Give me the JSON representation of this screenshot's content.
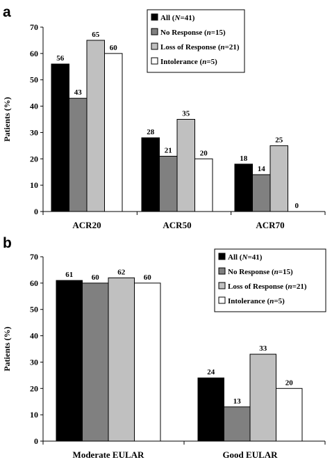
{
  "chart_data": [
    {
      "panel": "a",
      "type": "bar",
      "ylabel": "Patients (%)",
      "ylim": [
        0,
        70
      ],
      "yticks": [
        0,
        10,
        20,
        30,
        40,
        50,
        60,
        70
      ],
      "categories": [
        "ACR20",
        "ACR50",
        "ACR70"
      ],
      "series": [
        {
          "name": "All",
          "stat": "N=41",
          "color": "#000000",
          "values": [
            56,
            28,
            18
          ]
        },
        {
          "name": "No Response",
          "stat": "n=15",
          "color": "#808080",
          "values": [
            43,
            21,
            14
          ]
        },
        {
          "name": "Loss of Response",
          "stat": "n=21",
          "color": "#c0c0c0",
          "values": [
            65,
            35,
            25
          ]
        },
        {
          "name": "Intolerance",
          "stat": "n=5",
          "color": "#ffffff",
          "values": [
            60,
            20,
            0
          ]
        }
      ],
      "legend": "top-right",
      "grid": false
    },
    {
      "panel": "b",
      "type": "bar",
      "ylabel": "Patients (%)",
      "ylim": [
        0,
        70
      ],
      "yticks": [
        0,
        10,
        20,
        30,
        40,
        50,
        60,
        70
      ],
      "categories": [
        "Moderate EULAR",
        "Good EULAR"
      ],
      "series": [
        {
          "name": "All",
          "stat": "N=41",
          "color": "#000000",
          "values": [
            61,
            24
          ]
        },
        {
          "name": "No Response",
          "stat": "n=15",
          "color": "#808080",
          "values": [
            60,
            13
          ]
        },
        {
          "name": "Loss of Response",
          "stat": "n=21",
          "color": "#c0c0c0",
          "values": [
            62,
            33
          ]
        },
        {
          "name": "Intolerance",
          "stat": "n=5",
          "color": "#ffffff",
          "values": [
            60,
            20
          ]
        }
      ],
      "legend": "top-right",
      "grid": false
    }
  ]
}
